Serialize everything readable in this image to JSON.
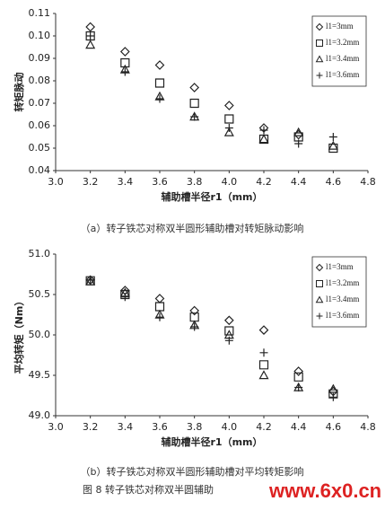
{
  "chart_data": [
    {
      "type": "scatter",
      "xlabel": "辅助槽半径r1（mm）",
      "ylabel": "转矩脉动",
      "x": [
        3.2,
        3.4,
        3.6,
        3.8,
        4.0,
        4.2,
        4.4,
        4.6
      ],
      "xlim": [
        3.0,
        4.8
      ],
      "xticks": [
        {
          "value": 3,
          "label": "3.0"
        },
        3.2,
        3.4,
        3.6,
        3.8,
        {
          "value": 4,
          "label": "4.0"
        },
        4.2,
        4.4,
        4.6,
        4.8
      ],
      "ylim": [
        0.04,
        0.11
      ],
      "yticks": [
        0.04,
        0.05,
        0.06,
        0.07,
        0.08,
        0.09,
        {
          "value": 0.1,
          "label": "0.10"
        },
        0.11
      ],
      "series": [
        {
          "name": "l1=3mm",
          "marker": "diamond",
          "color": "#222",
          "values": [
            0.104,
            0.093,
            0.087,
            0.077,
            0.069,
            0.059,
            0.056,
            null
          ]
        },
        {
          "name": "l1=3.2mm",
          "marker": "square",
          "color": "#222",
          "values": [
            0.1,
            0.088,
            0.079,
            0.07,
            0.063,
            0.054,
            0.055,
            0.05
          ]
        },
        {
          "name": "l1=3.4mm",
          "marker": "triangle",
          "color": "#222",
          "values": [
            0.096,
            0.085,
            0.073,
            0.064,
            0.057,
            0.054,
            0.057,
            0.051
          ]
        },
        {
          "name": "l1=3.6mm",
          "marker": "plus",
          "color": "#222",
          "values": [
            0.1,
            0.084,
            0.072,
            0.064,
            0.059,
            0.058,
            0.052,
            0.055
          ]
        }
      ]
    },
    {
      "type": "scatter",
      "xlabel": "辅助槽半径r1（mm）",
      "ylabel": "平均转矩（Nm）",
      "x": [
        3.2,
        3.4,
        3.6,
        3.8,
        4.0,
        4.2,
        4.4,
        4.6
      ],
      "xlim": [
        3.0,
        4.8
      ],
      "xticks": [
        {
          "value": 3,
          "label": "3.0"
        },
        3.2,
        3.4,
        3.6,
        3.8,
        {
          "value": 4,
          "label": "4.0"
        },
        4.2,
        4.4,
        4.6,
        4.8
      ],
      "ylim": [
        49.0,
        51.0
      ],
      "yticks": [
        {
          "value": 49,
          "label": "49.0"
        },
        49.5,
        {
          "value": 50,
          "label": "50.0"
        },
        50.5,
        {
          "value": 51,
          "label": "51.0"
        }
      ],
      "series": [
        {
          "name": "l1=3mm",
          "marker": "diamond",
          "color": "#222",
          "values": [
            50.68,
            50.55,
            50.45,
            50.3,
            50.18,
            50.06,
            49.55,
            49.3
          ]
        },
        {
          "name": "l1=3.2mm",
          "marker": "square",
          "color": "#222",
          "values": [
            50.67,
            50.5,
            50.35,
            50.22,
            50.05,
            49.63,
            49.48,
            49.27
          ]
        },
        {
          "name": "l1=3.4mm",
          "marker": "triangle",
          "color": "#222",
          "values": [
            50.66,
            50.52,
            50.25,
            50.12,
            50.0,
            49.5,
            49.35,
            49.33
          ]
        },
        {
          "name": "l1=3.6mm",
          "marker": "plus",
          "color": "#222",
          "values": [
            50.68,
            50.47,
            50.22,
            50.1,
            49.93,
            49.78,
            49.35,
            49.23
          ]
        }
      ]
    }
  ],
  "captions": [
    "（a）转子铁芯对称双半圆形辅助槽对转矩脉动影响",
    "（b）转子铁芯对称双半圆形辅助槽对平均转矩影响",
    "图 8 转子铁芯对称双半圆辅助"
  ],
  "watermark": "www.6x0.cn"
}
